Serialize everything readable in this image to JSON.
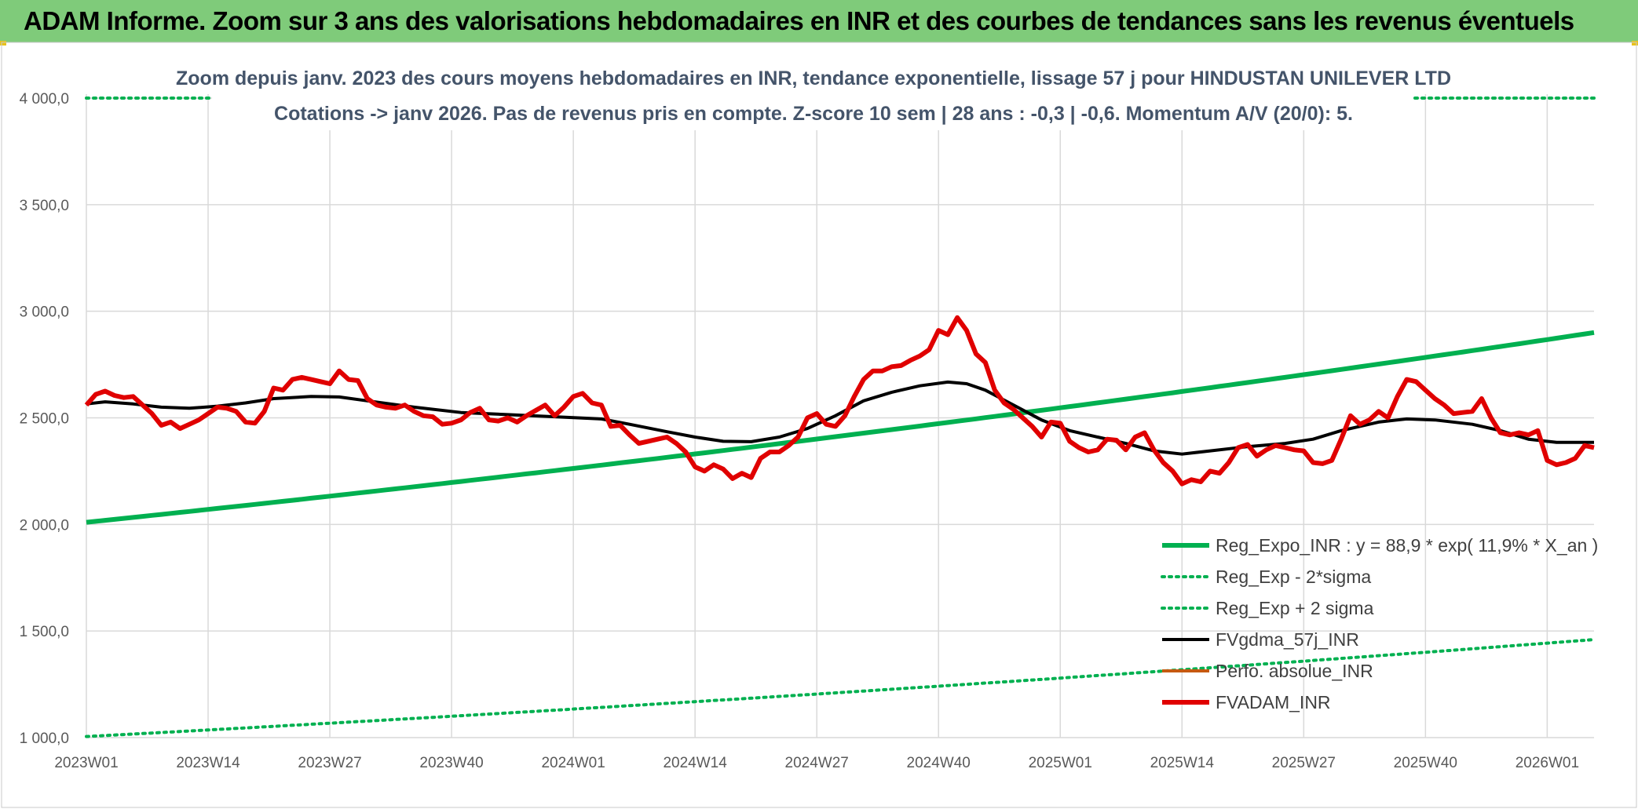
{
  "banner": {
    "title": "ADAM Informe. Zoom sur 3 ans des valorisations hebdomadaires en INR et des courbes de tendances sans les revenus éventuels"
  },
  "colors": {
    "banner_bg": "#7fcb7a",
    "reg_expo": "#00b050",
    "fvgdma": "#000000",
    "fvadam": "#e00000",
    "perfo": "#c55a11",
    "grid": "#d9d9d9"
  },
  "chart_data": {
    "type": "line",
    "title_line1": "Zoom depuis janv. 2023 des cours moyens hebdomadaires en INR, tendance exponentielle, lissage 57 j pour HINDUSTAN UNILEVER LTD",
    "title_line2": "Cotations -> janv 2026. Pas de revenus pris en compte. Z-score 10 sem | 28 ans : -0,3 | -0,6. Momentum A/V (20/0): 5.",
    "ylim": [
      1000,
      4000
    ],
    "yticks": [
      "1 000,0",
      "1 500,0",
      "2 000,0",
      "2 500,0",
      "3 000,0",
      "3 500,0",
      "4 000,0"
    ],
    "ytick_values": [
      1000,
      1500,
      2000,
      2500,
      3000,
      3500,
      4000
    ],
    "xticks": [
      "2023W01",
      "2023W14",
      "2023W27",
      "2023W40",
      "2024W01",
      "2024W14",
      "2024W27",
      "2024W40",
      "2025W01",
      "2025W14",
      "2025W27",
      "2025W40",
      "2026W01"
    ],
    "xtick_index": [
      0,
      13,
      26,
      39,
      52,
      65,
      78,
      91,
      104,
      117,
      130,
      143,
      156
    ],
    "n_weeks": 162,
    "legend_position": "bottom-right",
    "grid": true,
    "series": [
      {
        "name": "Reg_Expo_INR : y = 88,9 * exp( 11,9% *  X_an )",
        "style": "solid-thick",
        "color": "#00b050",
        "points": [
          [
            0,
            2010
          ],
          [
            161,
            2900
          ]
        ]
      },
      {
        "name": "Reg_Exp - 2*sigma",
        "style": "dotted",
        "color": "#00b050",
        "points": [
          [
            0,
            1005
          ],
          [
            161,
            1460
          ]
        ]
      },
      {
        "name": "Reg_Exp + 2 sigma",
        "style": "dotted",
        "color": "#00b050",
        "points": [
          [
            0,
            4000
          ],
          [
            161,
            4000
          ]
        ]
      },
      {
        "name": "FVgdma_57j_INR",
        "style": "solid",
        "color": "#000000",
        "points": [
          [
            0,
            2565
          ],
          [
            2,
            2575
          ],
          [
            5,
            2565
          ],
          [
            8,
            2550
          ],
          [
            11,
            2545
          ],
          [
            14,
            2555
          ],
          [
            17,
            2570
          ],
          [
            20,
            2590
          ],
          [
            24,
            2600
          ],
          [
            27,
            2598
          ],
          [
            30,
            2580
          ],
          [
            35,
            2550
          ],
          [
            40,
            2525
          ],
          [
            45,
            2515
          ],
          [
            50,
            2505
          ],
          [
            55,
            2495
          ],
          [
            58,
            2470
          ],
          [
            62,
            2435
          ],
          [
            65,
            2410
          ],
          [
            68,
            2390
          ],
          [
            71,
            2388
          ],
          [
            74,
            2410
          ],
          [
            77,
            2450
          ],
          [
            80,
            2510
          ],
          [
            83,
            2580
          ],
          [
            86,
            2620
          ],
          [
            89,
            2650
          ],
          [
            92,
            2668
          ],
          [
            94,
            2660
          ],
          [
            96,
            2630
          ],
          [
            99,
            2560
          ],
          [
            102,
            2490
          ],
          [
            105,
            2440
          ],
          [
            108,
            2410
          ],
          [
            111,
            2380
          ],
          [
            114,
            2345
          ],
          [
            117,
            2330
          ],
          [
            120,
            2345
          ],
          [
            124,
            2365
          ],
          [
            128,
            2380
          ],
          [
            131,
            2400
          ],
          [
            134,
            2440
          ],
          [
            138,
            2480
          ],
          [
            141,
            2495
          ],
          [
            144,
            2490
          ],
          [
            148,
            2470
          ],
          [
            151,
            2440
          ],
          [
            154,
            2400
          ],
          [
            157,
            2385
          ],
          [
            161,
            2385
          ]
        ]
      },
      {
        "name": "Perfo. absolue_INR",
        "style": "solid",
        "color": "#c55a11",
        "points": []
      },
      {
        "name": "FVADAM_INR",
        "style": "solid-thick",
        "color": "#e00000",
        "points": [
          [
            0,
            2560
          ],
          [
            1,
            2610
          ],
          [
            2,
            2625
          ],
          [
            3,
            2605
          ],
          [
            4,
            2595
          ],
          [
            5,
            2600
          ],
          [
            6,
            2560
          ],
          [
            7,
            2520
          ],
          [
            8,
            2465
          ],
          [
            9,
            2480
          ],
          [
            10,
            2450
          ],
          [
            11,
            2470
          ],
          [
            12,
            2490
          ],
          [
            13,
            2520
          ],
          [
            14,
            2550
          ],
          [
            15,
            2545
          ],
          [
            16,
            2530
          ],
          [
            17,
            2480
          ],
          [
            18,
            2475
          ],
          [
            19,
            2530
          ],
          [
            20,
            2640
          ],
          [
            21,
            2630
          ],
          [
            22,
            2680
          ],
          [
            23,
            2690
          ],
          [
            24,
            2680
          ],
          [
            25,
            2670
          ],
          [
            26,
            2660
          ],
          [
            27,
            2720
          ],
          [
            28,
            2680
          ],
          [
            29,
            2675
          ],
          [
            30,
            2590
          ],
          [
            31,
            2560
          ],
          [
            32,
            2550
          ],
          [
            33,
            2545
          ],
          [
            34,
            2560
          ],
          [
            35,
            2530
          ],
          [
            36,
            2510
          ],
          [
            37,
            2505
          ],
          [
            38,
            2470
          ],
          [
            39,
            2475
          ],
          [
            40,
            2490
          ],
          [
            41,
            2525
          ],
          [
            42,
            2545
          ],
          [
            43,
            2490
          ],
          [
            44,
            2485
          ],
          [
            45,
            2500
          ],
          [
            46,
            2480
          ],
          [
            47,
            2510
          ],
          [
            48,
            2535
          ],
          [
            49,
            2560
          ],
          [
            50,
            2510
          ],
          [
            51,
            2550
          ],
          [
            52,
            2600
          ],
          [
            53,
            2615
          ],
          [
            54,
            2570
          ],
          [
            55,
            2560
          ],
          [
            56,
            2460
          ],
          [
            57,
            2465
          ],
          [
            58,
            2420
          ],
          [
            59,
            2380
          ],
          [
            60,
            2390
          ],
          [
            61,
            2400
          ],
          [
            62,
            2410
          ],
          [
            63,
            2380
          ],
          [
            64,
            2340
          ],
          [
            65,
            2270
          ],
          [
            66,
            2250
          ],
          [
            67,
            2280
          ],
          [
            68,
            2260
          ],
          [
            69,
            2215
          ],
          [
            70,
            2240
          ],
          [
            71,
            2220
          ],
          [
            72,
            2310
          ],
          [
            73,
            2340
          ],
          [
            74,
            2340
          ],
          [
            75,
            2370
          ],
          [
            76,
            2410
          ],
          [
            77,
            2500
          ],
          [
            78,
            2520
          ],
          [
            79,
            2470
          ],
          [
            80,
            2460
          ],
          [
            81,
            2510
          ],
          [
            82,
            2600
          ],
          [
            83,
            2680
          ],
          [
            84,
            2720
          ],
          [
            85,
            2720
          ],
          [
            86,
            2740
          ],
          [
            87,
            2745
          ],
          [
            88,
            2770
          ],
          [
            89,
            2790
          ],
          [
            90,
            2820
          ],
          [
            91,
            2910
          ],
          [
            92,
            2890
          ],
          [
            93,
            2970
          ],
          [
            94,
            2910
          ],
          [
            95,
            2800
          ],
          [
            96,
            2760
          ],
          [
            97,
            2630
          ],
          [
            98,
            2570
          ],
          [
            99,
            2540
          ],
          [
            100,
            2500
          ],
          [
            101,
            2460
          ],
          [
            102,
            2410
          ],
          [
            103,
            2480
          ],
          [
            104,
            2475
          ],
          [
            105,
            2390
          ],
          [
            106,
            2360
          ],
          [
            107,
            2340
          ],
          [
            108,
            2350
          ],
          [
            109,
            2400
          ],
          [
            110,
            2395
          ],
          [
            111,
            2350
          ],
          [
            112,
            2410
          ],
          [
            113,
            2430
          ],
          [
            114,
            2350
          ],
          [
            115,
            2290
          ],
          [
            116,
            2250
          ],
          [
            117,
            2190
          ],
          [
            118,
            2210
          ],
          [
            119,
            2200
          ],
          [
            120,
            2250
          ],
          [
            121,
            2240
          ],
          [
            122,
            2290
          ],
          [
            123,
            2360
          ],
          [
            124,
            2375
          ],
          [
            125,
            2320
          ],
          [
            126,
            2350
          ],
          [
            127,
            2370
          ],
          [
            128,
            2360
          ],
          [
            129,
            2350
          ],
          [
            130,
            2345
          ],
          [
            131,
            2290
          ],
          [
            132,
            2285
          ],
          [
            133,
            2300
          ],
          [
            134,
            2400
          ],
          [
            135,
            2510
          ],
          [
            136,
            2470
          ],
          [
            137,
            2490
          ],
          [
            138,
            2530
          ],
          [
            139,
            2500
          ],
          [
            140,
            2600
          ],
          [
            141,
            2680
          ],
          [
            142,
            2670
          ],
          [
            143,
            2630
          ],
          [
            144,
            2590
          ],
          [
            145,
            2560
          ],
          [
            146,
            2520
          ],
          [
            147,
            2525
          ],
          [
            148,
            2530
          ],
          [
            149,
            2590
          ],
          [
            150,
            2500
          ],
          [
            151,
            2430
          ],
          [
            152,
            2420
          ],
          [
            153,
            2430
          ],
          [
            154,
            2420
          ],
          [
            155,
            2440
          ],
          [
            156,
            2300
          ],
          [
            157,
            2280
          ],
          [
            158,
            2290
          ],
          [
            159,
            2310
          ],
          [
            160,
            2370
          ],
          [
            161,
            2360
          ]
        ]
      }
    ]
  }
}
